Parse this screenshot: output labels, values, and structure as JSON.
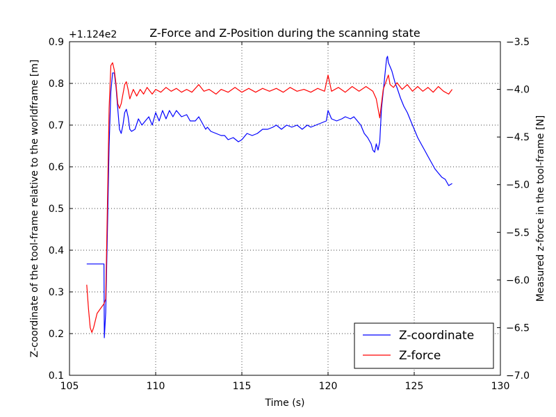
{
  "chart_data": {
    "type": "line",
    "title": "Z-Force and Z-Position during the scanning state",
    "xlabel": "Time (s)",
    "ylabel_left": "Z-coordinate of the tool-frame relative to the worldframe [m]",
    "ylabel_right": "Measured z-force in the tool-frame [N]",
    "left_axis_offset_text": "+1.124e2",
    "xlim": [
      105,
      130
    ],
    "ylim_left": [
      0.1,
      0.9
    ],
    "ylim_right": [
      -7.0,
      -3.5
    ],
    "x_ticks": [
      105,
      110,
      115,
      120,
      125,
      130
    ],
    "x_tick_labels": [
      "105",
      "110",
      "115",
      "120",
      "125",
      "130"
    ],
    "y_left_ticks": [
      0.1,
      0.2,
      0.3,
      0.4,
      0.5,
      0.6,
      0.7,
      0.8,
      0.9
    ],
    "y_left_tick_labels": [
      "0.1",
      "0.2",
      "0.3",
      "0.4",
      "0.5",
      "0.6",
      "0.7",
      "0.8",
      "0.9"
    ],
    "y_right_ticks": [
      -7.0,
      -6.5,
      -6.0,
      -5.5,
      -5.0,
      -4.5,
      -4.0,
      -3.5
    ],
    "y_right_tick_labels": [
      "−7.0",
      "−6.5",
      "−6.0",
      "−5.5",
      "−5.0",
      "−4.5",
      "−4.0",
      "−3.5"
    ],
    "grid": true,
    "legend_position": "bottom-right",
    "series": [
      {
        "name": "Z-coordinate",
        "axis": "left",
        "color": "#0000ff",
        "points": [
          [
            106.0,
            0.367
          ],
          [
            107.0,
            0.367
          ],
          [
            107.02,
            0.19
          ],
          [
            107.1,
            0.25
          ],
          [
            107.2,
            0.45
          ],
          [
            107.3,
            0.65
          ],
          [
            107.4,
            0.78
          ],
          [
            107.5,
            0.825
          ],
          [
            107.6,
            0.825
          ],
          [
            107.7,
            0.79
          ],
          [
            107.8,
            0.74
          ],
          [
            107.9,
            0.69
          ],
          [
            108.0,
            0.68
          ],
          [
            108.1,
            0.7
          ],
          [
            108.2,
            0.73
          ],
          [
            108.3,
            0.738
          ],
          [
            108.4,
            0.72
          ],
          [
            108.5,
            0.69
          ],
          [
            108.6,
            0.685
          ],
          [
            108.8,
            0.69
          ],
          [
            109.0,
            0.715
          ],
          [
            109.2,
            0.7
          ],
          [
            109.4,
            0.71
          ],
          [
            109.6,
            0.72
          ],
          [
            109.8,
            0.7
          ],
          [
            110.0,
            0.73
          ],
          [
            110.2,
            0.71
          ],
          [
            110.4,
            0.735
          ],
          [
            110.6,
            0.715
          ],
          [
            110.8,
            0.735
          ],
          [
            111.0,
            0.72
          ],
          [
            111.2,
            0.735
          ],
          [
            111.5,
            0.72
          ],
          [
            111.8,
            0.725
          ],
          [
            112.0,
            0.71
          ],
          [
            112.3,
            0.71
          ],
          [
            112.5,
            0.72
          ],
          [
            112.7,
            0.705
          ],
          [
            112.9,
            0.69
          ],
          [
            113.0,
            0.695
          ],
          [
            113.2,
            0.685
          ],
          [
            113.5,
            0.68
          ],
          [
            113.8,
            0.675
          ],
          [
            114.0,
            0.675
          ],
          [
            114.2,
            0.665
          ],
          [
            114.5,
            0.67
          ],
          [
            114.8,
            0.66
          ],
          [
            115.0,
            0.665
          ],
          [
            115.3,
            0.68
          ],
          [
            115.6,
            0.675
          ],
          [
            115.9,
            0.68
          ],
          [
            116.2,
            0.69
          ],
          [
            116.5,
            0.69
          ],
          [
            116.8,
            0.695
          ],
          [
            117.0,
            0.7
          ],
          [
            117.3,
            0.69
          ],
          [
            117.6,
            0.7
          ],
          [
            117.9,
            0.695
          ],
          [
            118.2,
            0.7
          ],
          [
            118.5,
            0.69
          ],
          [
            118.8,
            0.7
          ],
          [
            119.0,
            0.695
          ],
          [
            119.3,
            0.7
          ],
          [
            119.6,
            0.705
          ],
          [
            119.9,
            0.71
          ],
          [
            120.0,
            0.735
          ],
          [
            120.2,
            0.715
          ],
          [
            120.5,
            0.71
          ],
          [
            120.8,
            0.715
          ],
          [
            121.0,
            0.72
          ],
          [
            121.3,
            0.715
          ],
          [
            121.5,
            0.72
          ],
          [
            121.7,
            0.71
          ],
          [
            121.9,
            0.7
          ],
          [
            122.1,
            0.68
          ],
          [
            122.3,
            0.67
          ],
          [
            122.5,
            0.655
          ],
          [
            122.6,
            0.64
          ],
          [
            122.7,
            0.635
          ],
          [
            122.8,
            0.655
          ],
          [
            122.9,
            0.64
          ],
          [
            123.0,
            0.66
          ],
          [
            123.1,
            0.74
          ],
          [
            123.2,
            0.78
          ],
          [
            123.3,
            0.82
          ],
          [
            123.4,
            0.86
          ],
          [
            123.45,
            0.865
          ],
          [
            123.5,
            0.85
          ],
          [
            123.7,
            0.83
          ],
          [
            123.9,
            0.8
          ],
          [
            124.0,
            0.79
          ],
          [
            124.2,
            0.765
          ],
          [
            124.4,
            0.745
          ],
          [
            124.6,
            0.73
          ],
          [
            124.8,
            0.71
          ],
          [
            125.0,
            0.69
          ],
          [
            125.2,
            0.67
          ],
          [
            125.4,
            0.655
          ],
          [
            125.6,
            0.64
          ],
          [
            125.8,
            0.625
          ],
          [
            126.0,
            0.61
          ],
          [
            126.2,
            0.595
          ],
          [
            126.4,
            0.585
          ],
          [
            126.6,
            0.575
          ],
          [
            126.8,
            0.57
          ],
          [
            127.0,
            0.555
          ],
          [
            127.2,
            0.56
          ]
        ]
      },
      {
        "name": "Z-force",
        "axis": "right",
        "color": "#ff0000",
        "points": [
          [
            106.0,
            -6.05
          ],
          [
            106.1,
            -6.3
          ],
          [
            106.2,
            -6.5
          ],
          [
            106.3,
            -6.55
          ],
          [
            106.4,
            -6.5
          ],
          [
            106.6,
            -6.35
          ],
          [
            106.8,
            -6.3
          ],
          [
            107.0,
            -6.25
          ],
          [
            107.1,
            -6.2
          ],
          [
            107.2,
            -5.2
          ],
          [
            107.3,
            -4.2
          ],
          [
            107.4,
            -3.75
          ],
          [
            107.5,
            -3.72
          ],
          [
            107.6,
            -3.8
          ],
          [
            107.7,
            -3.95
          ],
          [
            107.8,
            -4.15
          ],
          [
            107.9,
            -4.2
          ],
          [
            108.0,
            -4.15
          ],
          [
            108.1,
            -4.05
          ],
          [
            108.2,
            -3.95
          ],
          [
            108.3,
            -3.92
          ],
          [
            108.4,
            -4.0
          ],
          [
            108.5,
            -4.1
          ],
          [
            108.7,
            -4.0
          ],
          [
            108.9,
            -4.07
          ],
          [
            109.1,
            -4.0
          ],
          [
            109.3,
            -4.05
          ],
          [
            109.5,
            -3.98
          ],
          [
            109.8,
            -4.05
          ],
          [
            110.0,
            -4.0
          ],
          [
            110.3,
            -4.03
          ],
          [
            110.6,
            -3.98
          ],
          [
            110.9,
            -4.02
          ],
          [
            111.2,
            -3.99
          ],
          [
            111.5,
            -4.03
          ],
          [
            111.8,
            -4.0
          ],
          [
            112.1,
            -4.03
          ],
          [
            112.5,
            -3.95
          ],
          [
            112.8,
            -4.02
          ],
          [
            113.1,
            -4.0
          ],
          [
            113.5,
            -4.05
          ],
          [
            113.8,
            -4.0
          ],
          [
            114.2,
            -4.03
          ],
          [
            114.6,
            -3.98
          ],
          [
            115.0,
            -4.03
          ],
          [
            115.4,
            -3.99
          ],
          [
            115.8,
            -4.03
          ],
          [
            116.2,
            -3.99
          ],
          [
            116.6,
            -4.02
          ],
          [
            117.0,
            -3.99
          ],
          [
            117.4,
            -4.03
          ],
          [
            117.8,
            -3.98
          ],
          [
            118.2,
            -4.02
          ],
          [
            118.6,
            -4.0
          ],
          [
            119.0,
            -4.03
          ],
          [
            119.4,
            -3.99
          ],
          [
            119.8,
            -4.02
          ],
          [
            120.0,
            -3.85
          ],
          [
            120.2,
            -4.02
          ],
          [
            120.6,
            -3.98
          ],
          [
            121.0,
            -4.03
          ],
          [
            121.4,
            -3.97
          ],
          [
            121.8,
            -4.02
          ],
          [
            122.2,
            -3.97
          ],
          [
            122.6,
            -4.02
          ],
          [
            122.8,
            -4.1
          ],
          [
            123.0,
            -4.3
          ],
          [
            123.1,
            -4.15
          ],
          [
            123.2,
            -4.0
          ],
          [
            123.4,
            -3.9
          ],
          [
            123.5,
            -3.85
          ],
          [
            123.6,
            -3.95
          ],
          [
            123.8,
            -3.98
          ],
          [
            124.0,
            -3.93
          ],
          [
            124.3,
            -4.0
          ],
          [
            124.6,
            -3.95
          ],
          [
            124.9,
            -4.02
          ],
          [
            125.2,
            -3.97
          ],
          [
            125.5,
            -4.02
          ],
          [
            125.8,
            -3.98
          ],
          [
            126.1,
            -4.03
          ],
          [
            126.4,
            -3.97
          ],
          [
            126.7,
            -4.02
          ],
          [
            127.0,
            -4.05
          ],
          [
            127.2,
            -4.0
          ]
        ]
      }
    ]
  }
}
